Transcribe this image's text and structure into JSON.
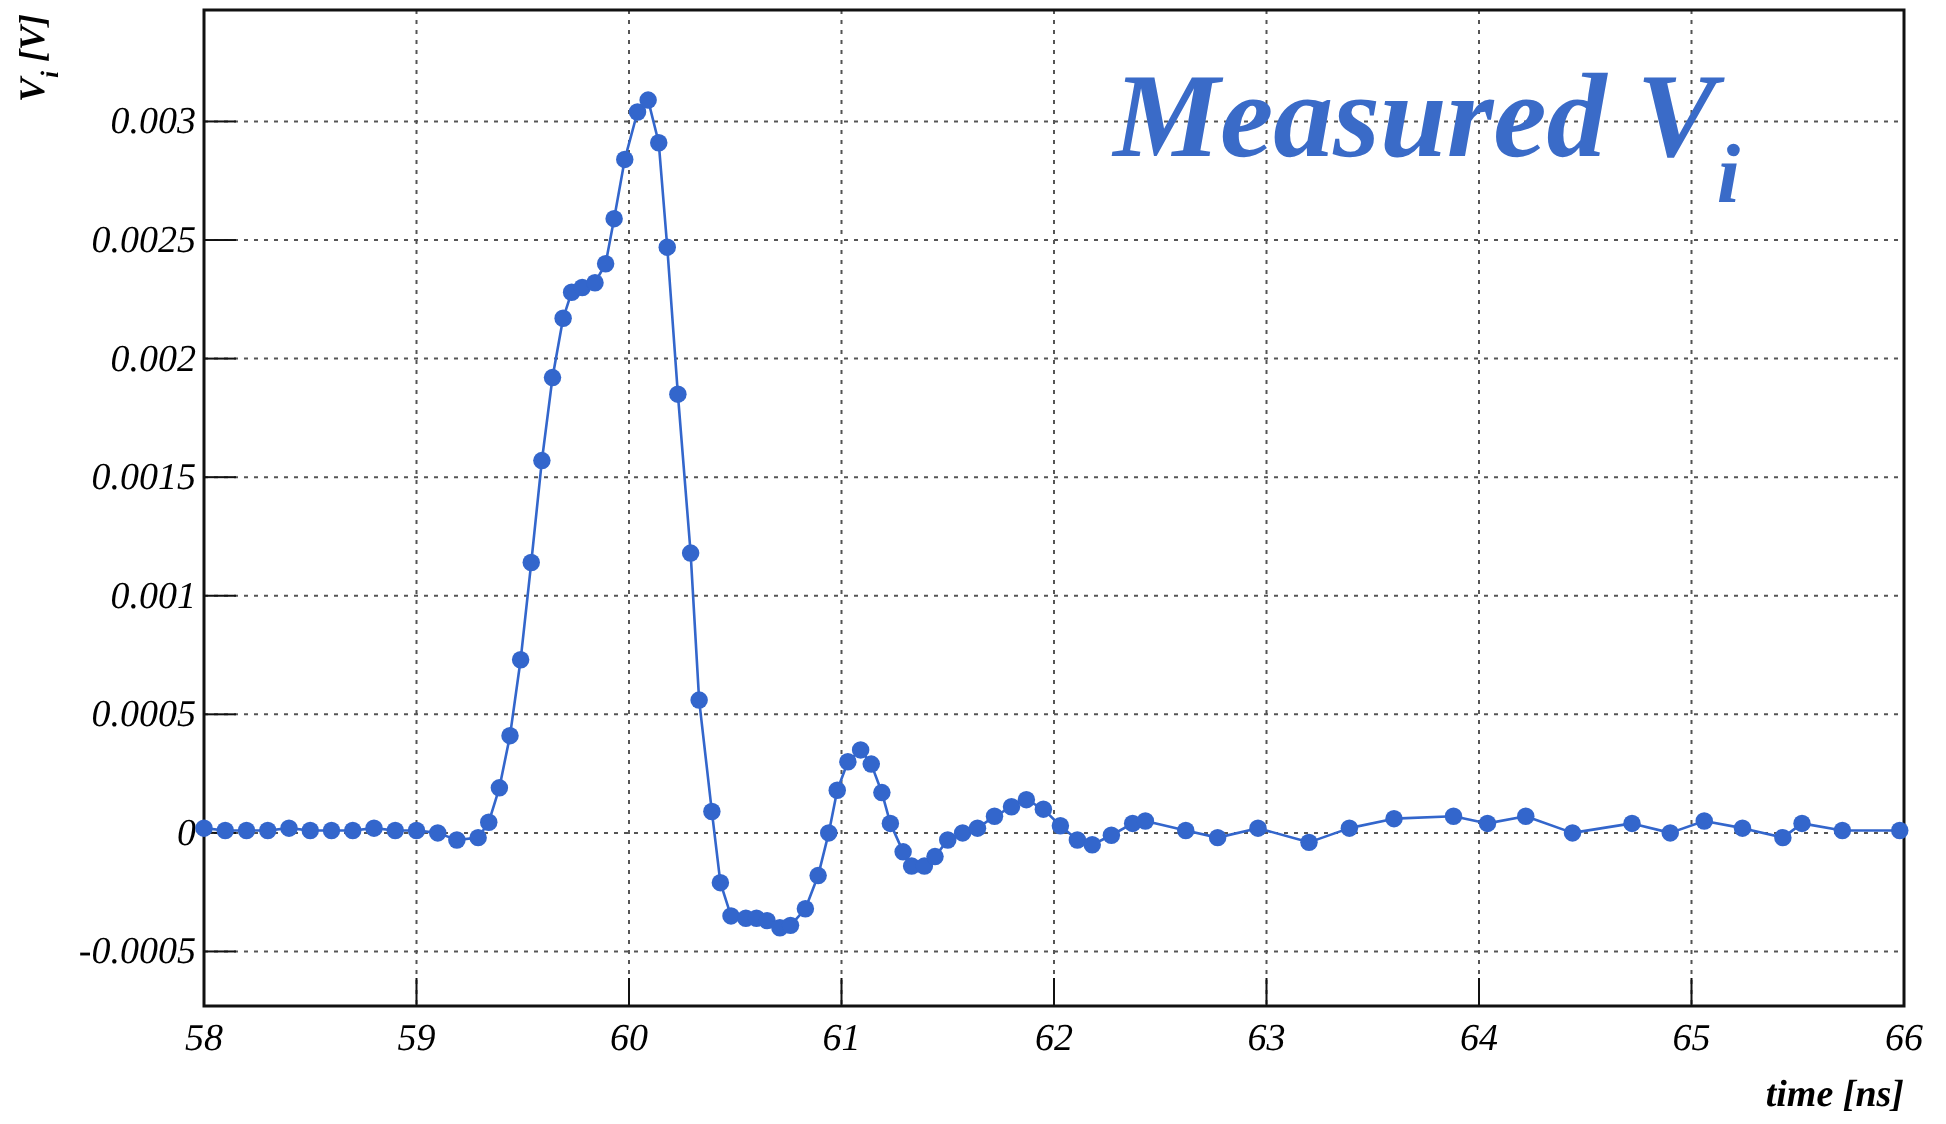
{
  "chart_data": {
    "type": "line",
    "title": "Measured V$_{i}$",
    "xlabel": "time [ns]",
    "ylabel": "V$_{i}$ [V]",
    "xlim": [
      58,
      66
    ],
    "xticks": [
      58,
      59,
      60,
      61,
      62,
      63,
      64,
      65,
      66
    ],
    "ylim": [
      -0.00073,
      0.00347
    ],
    "yticks": [
      -0.0005,
      0,
      0.0005,
      0.001,
      0.0015,
      0.002,
      0.0025,
      0.003
    ],
    "grid": true,
    "marker": "circle",
    "line_style": "solid",
    "series": [
      {
        "color": "#3366cc",
        "x": [
          58.0,
          58.1,
          58.2,
          58.3,
          58.4,
          58.5,
          58.6,
          58.7,
          58.8,
          58.9,
          59.0,
          59.1,
          59.19,
          59.29,
          59.34,
          59.39,
          59.44,
          59.49,
          59.54,
          59.59,
          59.64,
          59.69,
          59.73,
          59.78,
          59.84,
          59.89,
          59.93,
          59.98,
          60.04,
          60.09,
          60.14,
          60.18,
          60.23,
          60.29,
          60.33,
          60.39,
          60.43,
          60.48,
          60.55,
          60.6,
          60.65,
          60.71,
          60.76,
          60.83,
          60.89,
          60.94,
          60.98,
          61.03,
          61.09,
          61.14,
          61.19,
          61.23,
          61.29,
          61.33,
          61.39,
          61.44,
          61.5,
          61.57,
          61.64,
          61.72,
          61.8,
          61.87,
          61.95,
          62.03,
          62.11,
          62.18,
          62.27,
          62.37,
          62.43,
          62.62,
          62.77,
          62.96,
          63.2,
          63.39,
          63.6,
          63.88,
          64.04,
          64.22,
          64.44,
          64.72,
          64.9,
          65.06,
          65.24,
          65.43,
          65.52,
          65.71,
          65.98
        ],
        "values": [
          2e-05,
          1e-05,
          1e-05,
          1e-05,
          2e-05,
          1e-05,
          1e-05,
          1e-05,
          2e-05,
          1e-05,
          1e-05,
          0.0,
          -3e-05,
          -2e-05,
          4.5e-05,
          0.00019,
          0.00041,
          0.00073,
          0.00114,
          0.00157,
          0.00192,
          0.00217,
          0.00228,
          0.0023,
          0.00232,
          0.0024,
          0.00259,
          0.00284,
          0.00304,
          0.00309,
          0.00291,
          0.00247,
          0.00185,
          0.00118,
          0.00056,
          9e-05,
          -0.00021,
          -0.00035,
          -0.00036,
          -0.00036,
          -0.00037,
          -0.0004,
          -0.00039,
          -0.00032,
          -0.00018,
          0.0,
          0.00018,
          0.0003,
          0.00035,
          0.00029,
          0.00017,
          4e-05,
          -8e-05,
          -0.00014,
          -0.00014,
          -0.0001,
          -3e-05,
          0.0,
          2e-05,
          7e-05,
          0.00011,
          0.00014,
          0.0001,
          3e-05,
          -3e-05,
          -5e-05,
          -1e-05,
          4e-05,
          5e-05,
          1e-05,
          -2e-05,
          2e-05,
          -4e-05,
          2e-05,
          6e-05,
          7e-05,
          4e-05,
          7e-05,
          0.0,
          4e-05,
          0.0,
          5e-05,
          2e-05,
          -2e-05,
          4e-05,
          1e-05,
          1e-05
        ]
      }
    ]
  }
}
